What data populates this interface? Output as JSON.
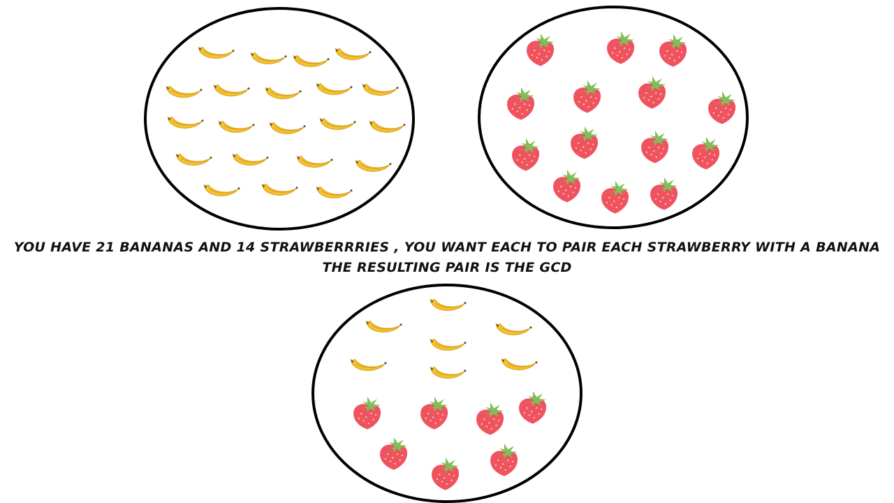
{
  "caption": {
    "line1": "YOU HAVE 21 BANANAS AND 14 STRAWBERRRIES , YOU WANT EACH TO PAIR EACH STRAWBERRY WITH A BANANA",
    "line2": "THE RESULTING PAIR IS THE GCD"
  },
  "groups": [
    {
      "name": "bananas-group",
      "contents": [
        {
          "fruit": "banana",
          "count": 21
        }
      ]
    },
    {
      "name": "strawberries-group",
      "contents": [
        {
          "fruit": "strawberry",
          "count": 14
        }
      ]
    },
    {
      "name": "pair-group",
      "contents": [
        {
          "fruit": "banana",
          "count": 7
        },
        {
          "fruit": "strawberry",
          "count": 7
        }
      ]
    }
  ],
  "colors": {
    "banana": "#f2c230",
    "banana_shade": "#d99a12",
    "strawberry": "#ef5360",
    "leaf": "#7fbf58",
    "outline": "#000000"
  }
}
